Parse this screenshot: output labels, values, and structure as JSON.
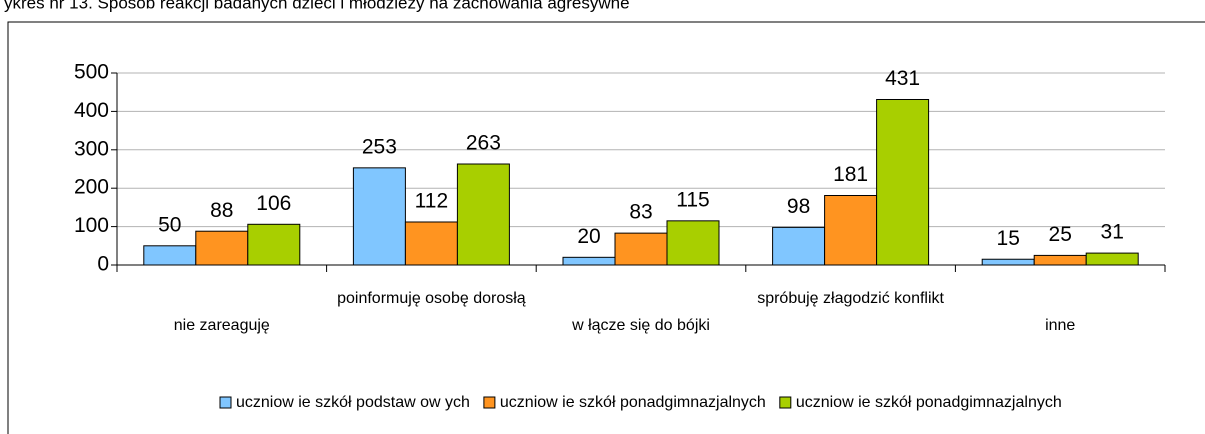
{
  "chart_data": {
    "type": "bar",
    "title": "ykres nr 13. Sposób reakcji badanych dzieci i młodzieży na zachowania agresywne",
    "categories": [
      "nie zareaguję",
      "poinformuję osobę dorosłą",
      "w łącze się do bójki",
      "spróbuję złagodzić konflikt",
      "inne"
    ],
    "series": [
      {
        "name": "uczniow ie szkół podstaw ow ych",
        "color": "#80c6ff",
        "values": [
          50,
          253,
          20,
          98,
          15
        ]
      },
      {
        "name": "uczniow ie szkół ponadgimnazjalnych",
        "color": "#ff9420",
        "values": [
          88,
          112,
          83,
          181,
          25
        ]
      },
      {
        "name": "uczniow ie szkół ponadgimnazjalnych",
        "color": "#a8cf00",
        "values": [
          106,
          263,
          115,
          431,
          31
        ]
      }
    ],
    "ylim": [
      0,
      500
    ],
    "yticks": [
      0,
      100,
      200,
      300,
      400,
      500
    ],
    "grid": true,
    "legend": "bottom"
  }
}
